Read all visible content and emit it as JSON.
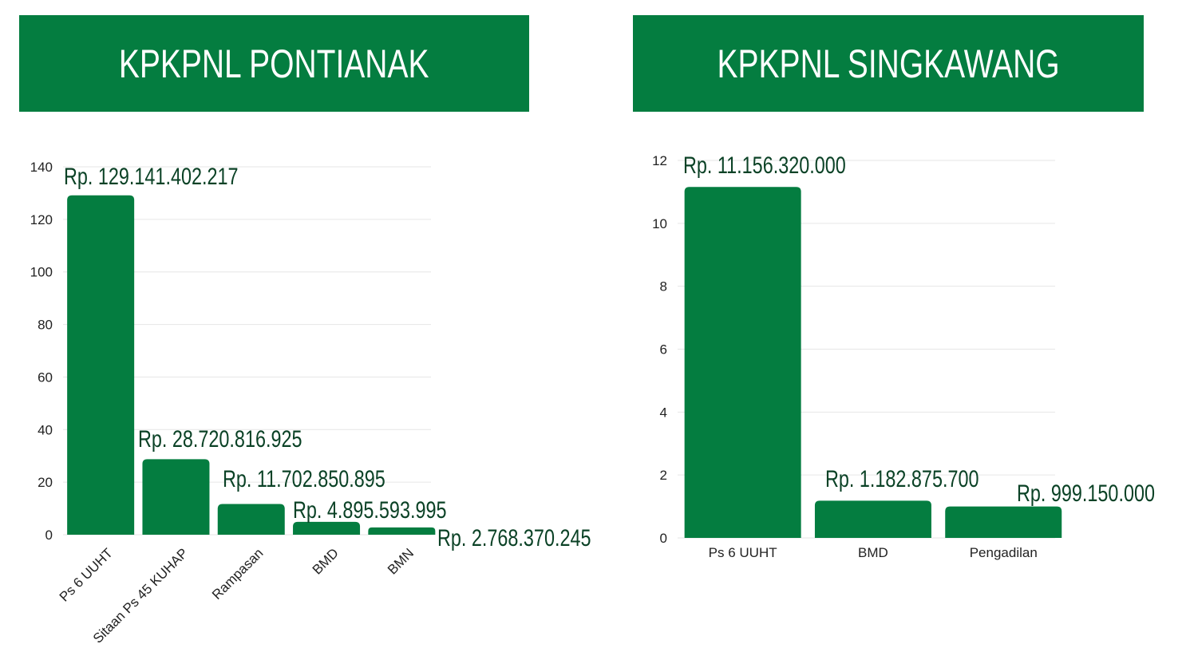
{
  "colors": {
    "accent": "#047d40",
    "bar": "#047d40",
    "label": "#0b4226",
    "grid": "#e6e6e6"
  },
  "banners": {
    "left": "KPKPNL PONTIANAK",
    "right": "KPKPNL SINGKAWANG"
  },
  "chart_data": [
    {
      "type": "bar",
      "title": "KPKPNL PONTIANAK",
      "categories": [
        "Ps 6 UUHT",
        "Sitaan Ps 45 KUHAP",
        "Rampasan",
        "BMD",
        "BMN"
      ],
      "values": [
        129.141402217,
        28.720816925,
        11.702850895,
        4.895593995,
        2.768370245
      ],
      "data_labels": [
        "Rp. 129.141.402.217",
        "Rp. 28.720.816.925",
        "Rp. 11.702.850.895",
        "Rp. 4.895.593.995",
        "Rp. 2.768.370.245"
      ],
      "yticks": [
        0,
        20,
        40,
        60,
        80,
        100,
        120,
        140
      ],
      "ylim": [
        0,
        140
      ],
      "grid": true,
      "xlabel": "",
      "ylabel": ""
    },
    {
      "type": "bar",
      "title": "KPKPNL SINGKAWANG",
      "categories": [
        "Ps 6 UUHT",
        "BMD",
        "Pengadilan"
      ],
      "values": [
        11.15632,
        1.1828757,
        0.99915
      ],
      "data_labels": [
        "Rp. 11.156.320.000",
        "Rp. 1.182.875.700",
        "Rp. 999.150.000"
      ],
      "yticks": [
        0,
        2,
        4,
        6,
        8,
        10,
        12
      ],
      "ylim": [
        0,
        12
      ],
      "grid": true,
      "xlabel": "",
      "ylabel": ""
    }
  ]
}
